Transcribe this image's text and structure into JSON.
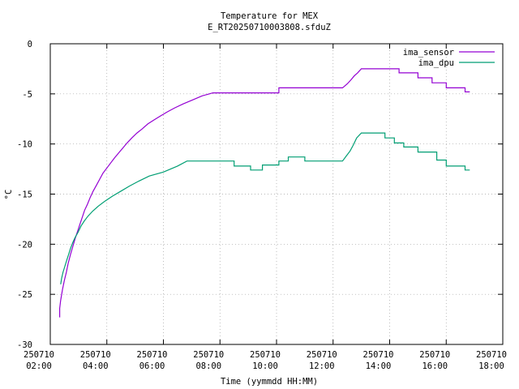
{
  "chart_data": {
    "type": "line",
    "title": "Temperature for MEX",
    "subtitle": "E_RT20250710003808.sfduZ",
    "xlabel": "Time (yymmdd HH:MM)",
    "ylabel": "°C",
    "xlim": [
      "2025-07-10 02:00",
      "2025-07-10 18:00"
    ],
    "ylim": [
      -30,
      0
    ],
    "grid": true,
    "legend_position": "top-right",
    "yticks": [
      0,
      -5,
      -10,
      -15,
      -20,
      -25,
      -30
    ],
    "xticks": [
      {
        "t": "2025-07-10 02:00",
        "date": "250710",
        "time": "02:00"
      },
      {
        "t": "2025-07-10 04:00",
        "date": "250710",
        "time": "04:00"
      },
      {
        "t": "2025-07-10 06:00",
        "date": "250710",
        "time": "06:00"
      },
      {
        "t": "2025-07-10 08:00",
        "date": "250710",
        "time": "08:00"
      },
      {
        "t": "2025-07-10 10:00",
        "date": "250710",
        "time": "10:00"
      },
      {
        "t": "2025-07-10 12:00",
        "date": "250710",
        "time": "12:00"
      },
      {
        "t": "2025-07-10 14:00",
        "date": "250710",
        "time": "14:00"
      },
      {
        "t": "2025-07-10 16:00",
        "date": "250710",
        "time": "16:00"
      },
      {
        "t": "2025-07-10 18:00",
        "date": "250710",
        "time": "18:00"
      }
    ],
    "series": [
      {
        "name": "ima_sensor",
        "color": "#9400d3",
        "points": [
          [
            "2025-07-10 02:20",
            -27.3
          ],
          [
            "2025-07-10 02:20",
            -26.4
          ],
          [
            "2025-07-10 02:22",
            -25.6
          ],
          [
            "2025-07-10 02:26",
            -24.5
          ],
          [
            "2025-07-10 02:30",
            -23.6
          ],
          [
            "2025-07-10 02:34",
            -22.8
          ],
          [
            "2025-07-10 02:38",
            -21.9
          ],
          [
            "2025-07-10 02:43",
            -21.0
          ],
          [
            "2025-07-10 02:48",
            -20.2
          ],
          [
            "2025-07-10 02:53",
            -19.4
          ],
          [
            "2025-07-10 02:58",
            -18.7
          ],
          [
            "2025-07-10 03:03",
            -18.0
          ],
          [
            "2025-07-10 03:08",
            -17.3
          ],
          [
            "2025-07-10 03:13",
            -16.6
          ],
          [
            "2025-07-10 03:19",
            -16.0
          ],
          [
            "2025-07-10 03:25",
            -15.3
          ],
          [
            "2025-07-10 03:31",
            -14.7
          ],
          [
            "2025-07-10 03:38",
            -14.1
          ],
          [
            "2025-07-10 03:45",
            -13.5
          ],
          [
            "2025-07-10 03:52",
            -12.9
          ],
          [
            "2025-07-10 04:00",
            -12.4
          ],
          [
            "2025-07-10 04:08",
            -11.9
          ],
          [
            "2025-07-10 04:16",
            -11.4
          ],
          [
            "2025-07-10 04:25",
            -10.9
          ],
          [
            "2025-07-10 04:34",
            -10.4
          ],
          [
            "2025-07-10 04:43",
            -9.9
          ],
          [
            "2025-07-10 04:53",
            -9.4
          ],
          [
            "2025-07-10 05:04",
            -8.9
          ],
          [
            "2025-07-10 05:15",
            -8.5
          ],
          [
            "2025-07-10 05:27",
            -8.0
          ],
          [
            "2025-07-10 05:40",
            -7.6
          ],
          [
            "2025-07-10 05:54",
            -7.2
          ],
          [
            "2025-07-10 06:08",
            -6.8
          ],
          [
            "2025-07-10 06:24",
            -6.4
          ],
          [
            "2025-07-10 06:42",
            -6.0
          ],
          [
            "2025-07-10 07:02",
            -5.6
          ],
          [
            "2025-07-10 07:22",
            -5.2
          ],
          [
            "2025-07-10 07:45",
            -4.9
          ],
          [
            "2025-07-10 10:05",
            -4.9
          ],
          [
            "2025-07-10 10:05",
            -4.4
          ],
          [
            "2025-07-10 12:20",
            -4.4
          ],
          [
            "2025-07-10 12:30",
            -4.0
          ],
          [
            "2025-07-10 12:38",
            -3.6
          ],
          [
            "2025-07-10 12:45",
            -3.2
          ],
          [
            "2025-07-10 12:52",
            -2.9
          ],
          [
            "2025-07-10 13:00",
            -2.5
          ],
          [
            "2025-07-10 14:20",
            -2.5
          ],
          [
            "2025-07-10 14:20",
            -2.9
          ],
          [
            "2025-07-10 15:00",
            -2.9
          ],
          [
            "2025-07-10 15:00",
            -3.4
          ],
          [
            "2025-07-10 15:30",
            -3.4
          ],
          [
            "2025-07-10 15:30",
            -3.9
          ],
          [
            "2025-07-10 16:00",
            -3.9
          ],
          [
            "2025-07-10 16:00",
            -4.4
          ],
          [
            "2025-07-10 16:40",
            -4.4
          ],
          [
            "2025-07-10 16:40",
            -4.8
          ],
          [
            "2025-07-10 16:50",
            -4.8
          ]
        ]
      },
      {
        "name": "ima_dpu",
        "color": "#009e73",
        "points": [
          [
            "2025-07-10 02:22",
            -24.0
          ],
          [
            "2025-07-10 02:24",
            -23.4
          ],
          [
            "2025-07-10 02:27",
            -22.8
          ],
          [
            "2025-07-10 02:31",
            -22.2
          ],
          [
            "2025-07-10 02:35",
            -21.6
          ],
          [
            "2025-07-10 02:39",
            -21.0
          ],
          [
            "2025-07-10 02:43",
            -20.4
          ],
          [
            "2025-07-10 02:48",
            -19.8
          ],
          [
            "2025-07-10 02:53",
            -19.3
          ],
          [
            "2025-07-10 02:59",
            -18.8
          ],
          [
            "2025-07-10 03:05",
            -18.2
          ],
          [
            "2025-07-10 03:12",
            -17.7
          ],
          [
            "2025-07-10 03:20",
            -17.2
          ],
          [
            "2025-07-10 03:30",
            -16.7
          ],
          [
            "2025-07-10 03:42",
            -16.2
          ],
          [
            "2025-07-10 03:56",
            -15.7
          ],
          [
            "2025-07-10 04:12",
            -15.2
          ],
          [
            "2025-07-10 04:30",
            -14.7
          ],
          [
            "2025-07-10 04:48",
            -14.2
          ],
          [
            "2025-07-10 05:08",
            -13.7
          ],
          [
            "2025-07-10 05:30",
            -13.2
          ],
          [
            "2025-07-10 06:00",
            -12.8
          ],
          [
            "2025-07-10 06:30",
            -12.2
          ],
          [
            "2025-07-10 06:50",
            -11.7
          ],
          [
            "2025-07-10 08:30",
            -11.7
          ],
          [
            "2025-07-10 08:30",
            -12.2
          ],
          [
            "2025-07-10 09:05",
            -12.2
          ],
          [
            "2025-07-10 09:05",
            -12.6
          ],
          [
            "2025-07-10 09:30",
            -12.6
          ],
          [
            "2025-07-10 09:30",
            -12.1
          ],
          [
            "2025-07-10 10:05",
            -12.1
          ],
          [
            "2025-07-10 10:05",
            -11.7
          ],
          [
            "2025-07-10 10:25",
            -11.7
          ],
          [
            "2025-07-10 10:25",
            -11.3
          ],
          [
            "2025-07-10 11:00",
            -11.3
          ],
          [
            "2025-07-10 11:00",
            -11.7
          ],
          [
            "2025-07-10 12:20",
            -11.7
          ],
          [
            "2025-07-10 12:28",
            -11.2
          ],
          [
            "2025-07-10 12:36",
            -10.7
          ],
          [
            "2025-07-10 12:43",
            -10.1
          ],
          [
            "2025-07-10 12:50",
            -9.4
          ],
          [
            "2025-07-10 13:00",
            -8.9
          ],
          [
            "2025-07-10 13:50",
            -8.9
          ],
          [
            "2025-07-10 13:50",
            -9.4
          ],
          [
            "2025-07-10 14:10",
            -9.4
          ],
          [
            "2025-07-10 14:10",
            -9.9
          ],
          [
            "2025-07-10 14:30",
            -9.9
          ],
          [
            "2025-07-10 14:30",
            -10.3
          ],
          [
            "2025-07-10 15:00",
            -10.3
          ],
          [
            "2025-07-10 15:00",
            -10.8
          ],
          [
            "2025-07-10 15:40",
            -10.8
          ],
          [
            "2025-07-10 15:40",
            -11.6
          ],
          [
            "2025-07-10 16:00",
            -11.6
          ],
          [
            "2025-07-10 16:00",
            -12.2
          ],
          [
            "2025-07-10 16:40",
            -12.2
          ],
          [
            "2025-07-10 16:40",
            -12.6
          ],
          [
            "2025-07-10 16:50",
            -12.6
          ]
        ]
      }
    ]
  }
}
